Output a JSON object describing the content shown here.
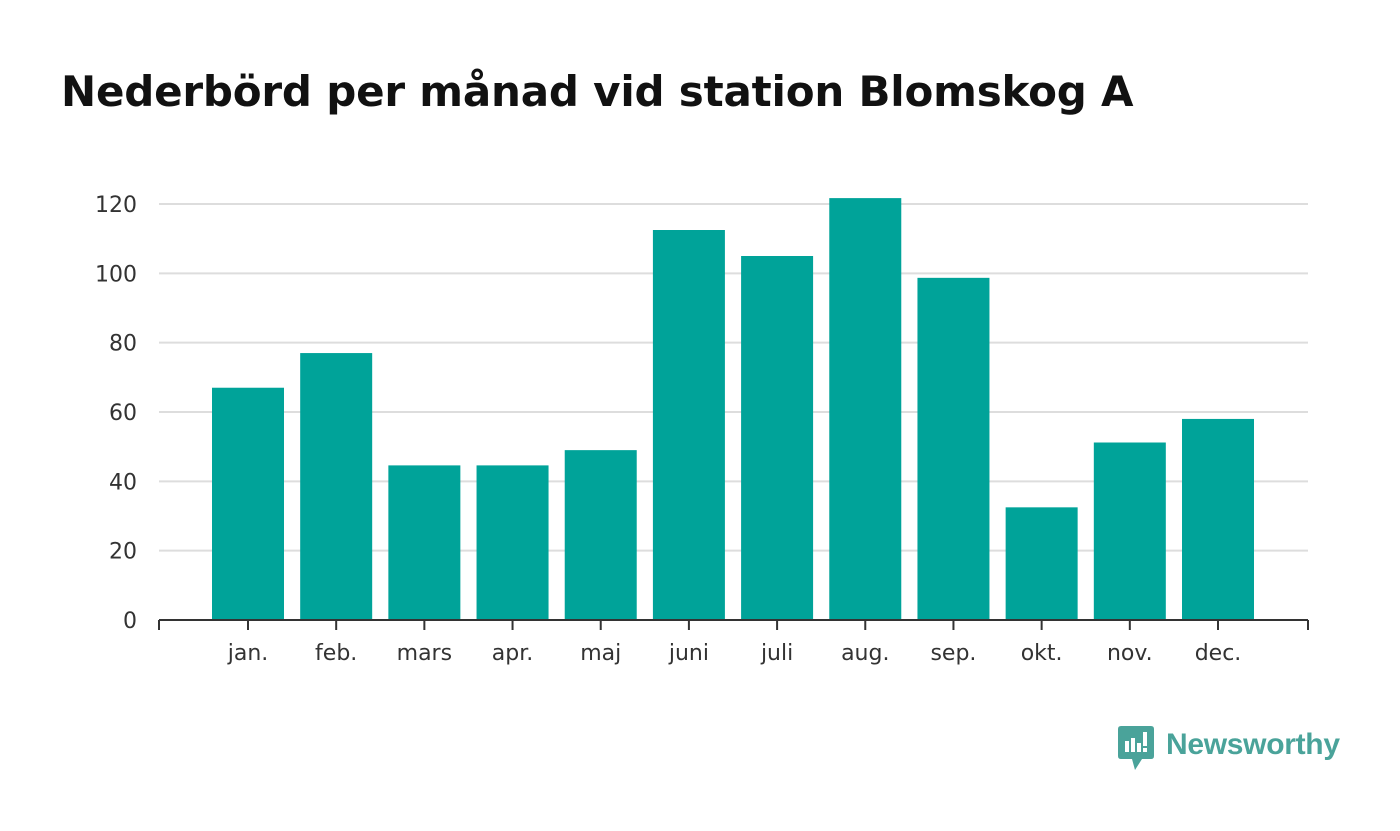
{
  "title": "Nederbörd per månad vid station Blomskog A",
  "brand": {
    "name": "Newsworthy",
    "color": "#4aa39a"
  },
  "colors": {
    "bar": "#00a399",
    "grid": "#dddddd",
    "axis": "#333333"
  },
  "chart_data": {
    "type": "bar",
    "title": "Nederbörd per månad vid station Blomskog A",
    "xlabel": "",
    "ylabel": "",
    "categories": [
      "jan.",
      "feb.",
      "mars",
      "apr.",
      "maj",
      "juni",
      "juli",
      "aug.",
      "sep.",
      "okt.",
      "nov.",
      "dec."
    ],
    "values": [
      67,
      77,
      44.6,
      44.6,
      49,
      112.5,
      105,
      121.7,
      98.7,
      32.5,
      51.2,
      58
    ],
    "ylim": [
      0,
      120
    ],
    "yticks": [
      "0",
      "20",
      "40",
      "60",
      "80",
      "100",
      "120"
    ],
    "grid": true,
    "legend": "none"
  }
}
